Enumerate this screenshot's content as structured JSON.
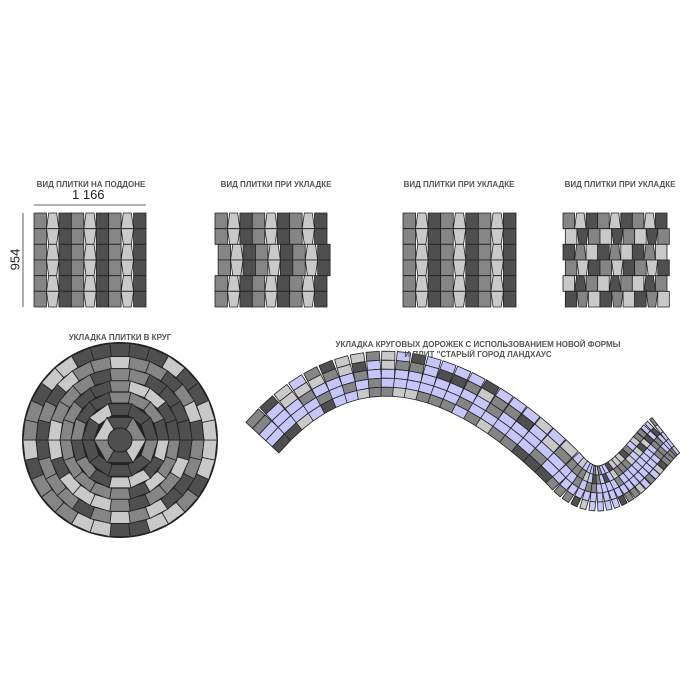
{
  "labels": {
    "pallet_view": "ВИД ПЛИТКИ НА ПОДДОНЕ",
    "laying_view_1": "ВИД ПЛИТКИ ПРИ УКЛАДКЕ",
    "laying_view_2": "ВИД ПЛИТКИ ПРИ УКЛАДКЕ",
    "laying_view_3": "ВИД ПЛИТКИ ПРИ УКЛАДКЕ",
    "circle_laying": "УКЛАДКА ПЛИТКИ В КРУГ",
    "path_laying_line1": "УКЛАДКА КРУГОВЫХ ДОРОЖЕК С ИСПОЛЬЗОВАНИЕМ НОВОЙ ФОРМЫ",
    "path_laying_line2": "И ПЛИТ \"СТАРЫЙ ГОРОД ЛАНДХАУС"
  },
  "dimensions": {
    "width": "1 166",
    "height": "954"
  },
  "colors": {
    "dark": "#4f4f4f",
    "medium": "#858585",
    "light": "#c9c9c9",
    "lavender": "#c6c6fb",
    "outline": "#222222"
  }
}
